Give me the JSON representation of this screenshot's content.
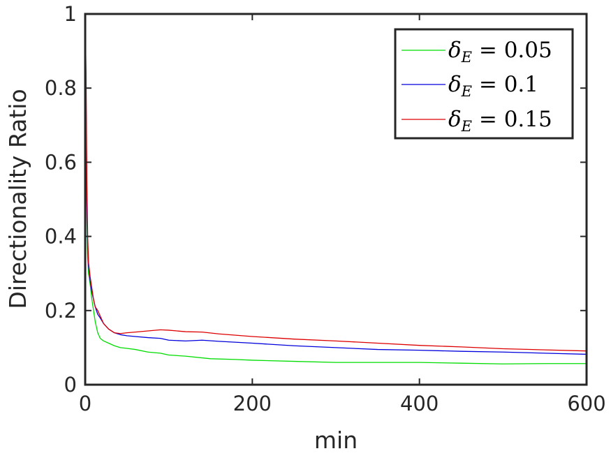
{
  "chart_data": {
    "type": "line",
    "xlabel": "min",
    "ylabel": "Directionality Ratio",
    "xlim": [
      0,
      600
    ],
    "ylim": [
      0,
      1
    ],
    "xticks": [
      0,
      200,
      400,
      600
    ],
    "yticks": [
      0,
      0.2,
      0.4,
      0.6,
      0.8,
      1
    ],
    "xtick_labels": [
      "0",
      "200",
      "400",
      "600"
    ],
    "ytick_labels": [
      "0",
      "0.2",
      "0.4",
      "0.6",
      "0.8",
      "1"
    ],
    "grid": false,
    "legend_position": "top-right",
    "series": [
      {
        "name_symbol": "δ",
        "name_sub": "E",
        "name_value": " = 0.05",
        "color": "#00dd00",
        "x": [
          0,
          1,
          2,
          3,
          4,
          6,
          8,
          10,
          12,
          15,
          18,
          22,
          28,
          35,
          42,
          50,
          60,
          75,
          90,
          100,
          120,
          150,
          180,
          200,
          250,
          300,
          350,
          400,
          450,
          500,
          550,
          600
        ],
        "y": [
          1.0,
          0.7,
          0.45,
          0.34,
          0.3,
          0.27,
          0.23,
          0.2,
          0.17,
          0.14,
          0.125,
          0.118,
          0.112,
          0.105,
          0.1,
          0.098,
          0.095,
          0.088,
          0.085,
          0.08,
          0.077,
          0.07,
          0.068,
          0.066,
          0.063,
          0.06,
          0.06,
          0.06,
          0.058,
          0.056,
          0.057,
          0.057
        ]
      },
      {
        "name_symbol": "δ",
        "name_sub": "E",
        "name_value": " = 0.1",
        "color": "#0000dd",
        "x": [
          0,
          1,
          2,
          3,
          4,
          6,
          8,
          10,
          12,
          15,
          18,
          22,
          28,
          35,
          42,
          50,
          60,
          75,
          90,
          100,
          120,
          140,
          160,
          200,
          250,
          300,
          350,
          400,
          450,
          500,
          550,
          600
        ],
        "y": [
          1.0,
          0.8,
          0.5,
          0.37,
          0.32,
          0.28,
          0.25,
          0.23,
          0.21,
          0.19,
          0.18,
          0.165,
          0.15,
          0.14,
          0.135,
          0.132,
          0.13,
          0.127,
          0.125,
          0.12,
          0.118,
          0.12,
          0.117,
          0.112,
          0.105,
          0.1,
          0.095,
          0.093,
          0.09,
          0.088,
          0.085,
          0.082
        ]
      },
      {
        "name_symbol": "δ",
        "name_sub": "E",
        "name_value": " = 0.15",
        "color": "#dd0000",
        "x": [
          0,
          1,
          2,
          3,
          4,
          6,
          8,
          10,
          12,
          15,
          18,
          22,
          28,
          35,
          42,
          50,
          60,
          75,
          90,
          100,
          120,
          140,
          160,
          200,
          250,
          300,
          350,
          400,
          450,
          500,
          550,
          600
        ],
        "y": [
          1.0,
          0.85,
          0.55,
          0.4,
          0.33,
          0.29,
          0.26,
          0.23,
          0.21,
          0.2,
          0.185,
          0.165,
          0.15,
          0.14,
          0.138,
          0.14,
          0.142,
          0.145,
          0.148,
          0.147,
          0.143,
          0.142,
          0.137,
          0.13,
          0.123,
          0.118,
          0.112,
          0.106,
          0.102,
          0.097,
          0.094,
          0.091
        ]
      }
    ]
  }
}
